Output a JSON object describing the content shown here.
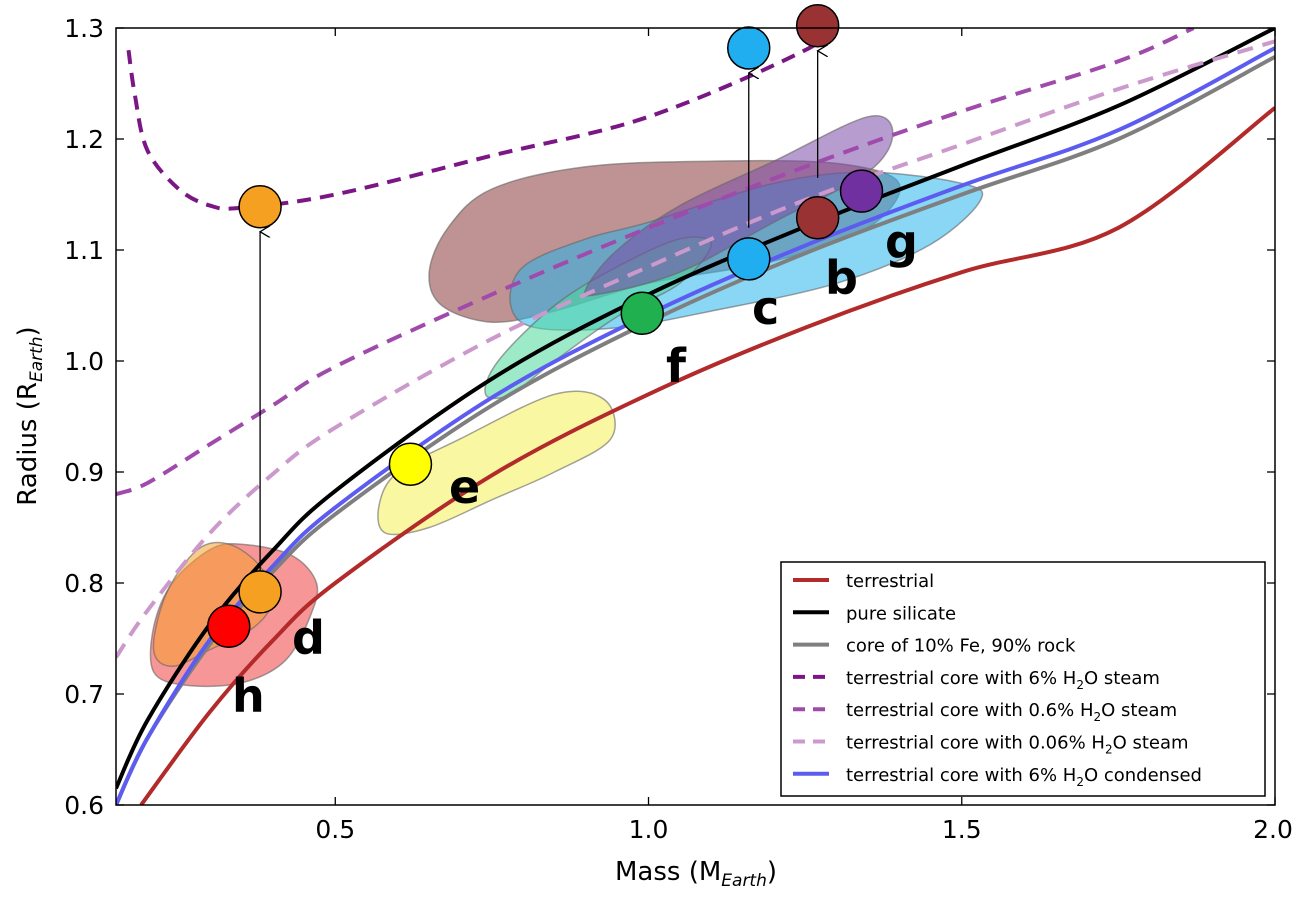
{
  "chart_data": {
    "type": "line",
    "xlabel": "Mass (M",
    "xlabel_sub": "Earth",
    "xlabel_end": ")",
    "ylabel": "Radius (R",
    "ylabel_sub": "Earth",
    "ylabel_end": ")",
    "xlim": [
      0.15,
      2.0
    ],
    "ylim": [
      0.6,
      1.3
    ],
    "xticks": [
      0.5,
      1.0,
      1.5,
      2.0
    ],
    "xtick_labels": [
      "0.5",
      "1.0",
      "1.5",
      "2.0"
    ],
    "yticks": [
      0.6,
      0.7,
      0.8,
      0.9,
      1.0,
      1.1,
      1.2,
      1.3
    ],
    "ytick_labels": [
      "0.6",
      "0.7",
      "0.8",
      "0.9",
      "1.0",
      "1.1",
      "1.2",
      "1.3"
    ],
    "grid": false,
    "legend_position": "bottom-right",
    "series": [
      {
        "name": "terrestrial",
        "color": "#b22a2a",
        "style": "solid",
        "points": [
          [
            0.19,
            0.6
          ],
          [
            0.3,
            0.684
          ],
          [
            0.4,
            0.748
          ],
          [
            0.5,
            0.8
          ],
          [
            0.75,
            0.897
          ],
          [
            1.0,
            0.97
          ],
          [
            1.25,
            1.03
          ],
          [
            1.5,
            1.08
          ],
          [
            1.75,
            1.12
          ],
          [
            2.0,
            1.228
          ]
        ]
      },
      {
        "name": "pure silicate",
        "color": "#000000",
        "style": "solid",
        "points": [
          [
            0.15,
            0.615
          ],
          [
            0.2,
            0.676
          ],
          [
            0.3,
            0.763
          ],
          [
            0.4,
            0.829
          ],
          [
            0.5,
            0.883
          ],
          [
            0.75,
            0.984
          ],
          [
            1.0,
            1.06
          ],
          [
            1.25,
            1.121
          ],
          [
            1.5,
            1.176
          ],
          [
            1.75,
            1.23
          ],
          [
            2.0,
            1.3
          ]
        ]
      },
      {
        "name": "core of 10% Fe, 90% rock",
        "color": "#7f7f7f",
        "style": "solid",
        "points": [
          [
            0.15,
            0.6
          ],
          [
            0.2,
            0.66
          ],
          [
            0.3,
            0.745
          ],
          [
            0.4,
            0.81
          ],
          [
            0.5,
            0.862
          ],
          [
            0.75,
            0.96
          ],
          [
            1.0,
            1.035
          ],
          [
            1.25,
            1.097
          ],
          [
            1.5,
            1.15
          ],
          [
            1.75,
            1.2
          ],
          [
            2.0,
            1.274
          ]
        ]
      },
      {
        "name": "terrestrial core with 6% H₂O steam",
        "label_main": "terrestrial core with 6% H",
        "label_sub": "2",
        "label_end": "O steam",
        "color": "#7a1785",
        "style": "dashed",
        "points": [
          [
            0.17,
            1.28
          ],
          [
            0.18,
            1.24
          ],
          [
            0.2,
            1.19
          ],
          [
            0.25,
            1.155
          ],
          [
            0.3,
            1.14
          ],
          [
            0.35,
            1.138
          ],
          [
            0.5,
            1.15
          ],
          [
            0.75,
            1.185
          ],
          [
            1.0,
            1.22
          ],
          [
            1.25,
            1.28
          ],
          [
            1.28,
            1.3
          ]
        ]
      },
      {
        "name": "terrestrial core with 0.6% H₂O steam",
        "label_main": "terrestrial core with 0.6% H",
        "label_sub": "2",
        "label_end": "O steam",
        "color": "#a04aab",
        "style": "dashed",
        "points": [
          [
            0.15,
            0.88
          ],
          [
            0.2,
            0.89
          ],
          [
            0.3,
            0.925
          ],
          [
            0.4,
            0.96
          ],
          [
            0.5,
            0.995
          ],
          [
            0.75,
            1.06
          ],
          [
            1.0,
            1.12
          ],
          [
            1.25,
            1.175
          ],
          [
            1.5,
            1.225
          ],
          [
            1.75,
            1.27
          ],
          [
            1.87,
            1.3
          ]
        ]
      },
      {
        "name": "terrestrial core with 0.06% H₂O steam",
        "label_main": "terrestrial core with 0.06% H",
        "label_sub": "2",
        "label_end": "O steam",
        "color": "#cc99cc",
        "style": "dashed",
        "points": [
          [
            0.15,
            0.733
          ],
          [
            0.2,
            0.775
          ],
          [
            0.3,
            0.845
          ],
          [
            0.4,
            0.898
          ],
          [
            0.5,
            0.94
          ],
          [
            0.75,
            1.02
          ],
          [
            1.0,
            1.085
          ],
          [
            1.25,
            1.145
          ],
          [
            1.5,
            1.195
          ],
          [
            1.75,
            1.245
          ],
          [
            2.0,
            1.288
          ]
        ]
      },
      {
        "name": "terrestrial core with 6% H₂O condensed",
        "label_main": "terrestrial core with 6% H",
        "label_sub": "2",
        "label_end": "O condensed",
        "color": "#5c5cf0",
        "style": "solid",
        "points": [
          [
            0.15,
            0.6
          ],
          [
            0.2,
            0.66
          ],
          [
            0.3,
            0.749
          ],
          [
            0.4,
            0.815
          ],
          [
            0.5,
            0.868
          ],
          [
            0.75,
            0.967
          ],
          [
            1.0,
            1.042
          ],
          [
            1.25,
            1.104
          ],
          [
            1.5,
            1.158
          ],
          [
            1.75,
            1.208
          ],
          [
            2.0,
            1.282
          ]
        ]
      }
    ],
    "regions": [
      {
        "name": "b",
        "color": "#8b3a3a",
        "points": [
          [
            0.65,
            1.08
          ],
          [
            0.68,
            1.12
          ],
          [
            0.75,
            1.155
          ],
          [
            0.9,
            1.175
          ],
          [
            1.1,
            1.18
          ],
          [
            1.3,
            1.178
          ],
          [
            1.4,
            1.16
          ],
          [
            1.35,
            1.12
          ],
          [
            1.2,
            1.09
          ],
          [
            1.0,
            1.07
          ],
          [
            0.85,
            1.045
          ],
          [
            0.75,
            1.035
          ],
          [
            0.67,
            1.05
          ]
        ]
      },
      {
        "name": "c",
        "color": "#28b4ec",
        "points": [
          [
            0.78,
            1.05
          ],
          [
            0.8,
            1.085
          ],
          [
            0.9,
            1.11
          ],
          [
            1.0,
            1.125
          ],
          [
            1.2,
            1.16
          ],
          [
            1.35,
            1.17
          ],
          [
            1.5,
            1.16
          ],
          [
            1.53,
            1.145
          ],
          [
            1.45,
            1.105
          ],
          [
            1.3,
            1.07
          ],
          [
            1.1,
            1.045
          ],
          [
            0.95,
            1.03
          ],
          [
            0.82,
            1.03
          ]
        ]
      },
      {
        "name": "f",
        "color": "#4dd99a",
        "points": [
          [
            0.74,
            0.97
          ],
          [
            0.76,
            1.0
          ],
          [
            0.85,
            1.05
          ],
          [
            0.95,
            1.085
          ],
          [
            1.05,
            1.11
          ],
          [
            1.1,
            1.105
          ],
          [
            1.05,
            1.07
          ],
          [
            0.95,
            1.04
          ],
          [
            0.85,
            1.0
          ],
          [
            0.78,
            0.97
          ]
        ]
      },
      {
        "name": "g",
        "color": "#7a4aa8",
        "points": [
          [
            0.9,
            1.065
          ],
          [
            0.95,
            1.1
          ],
          [
            1.05,
            1.14
          ],
          [
            1.2,
            1.18
          ],
          [
            1.35,
            1.22
          ],
          [
            1.39,
            1.205
          ],
          [
            1.35,
            1.17
          ],
          [
            1.2,
            1.125
          ],
          [
            1.05,
            1.08
          ],
          [
            0.92,
            1.06
          ]
        ]
      },
      {
        "name": "e",
        "color": "#f5f057",
        "points": [
          [
            0.57,
            0.87
          ],
          [
            0.6,
            0.9
          ],
          [
            0.7,
            0.93
          ],
          [
            0.85,
            0.97
          ],
          [
            0.93,
            0.965
          ],
          [
            0.94,
            0.93
          ],
          [
            0.85,
            0.9
          ],
          [
            0.75,
            0.875
          ],
          [
            0.65,
            0.85
          ],
          [
            0.58,
            0.845
          ]
        ]
      },
      {
        "name": "h",
        "color": "#f04040",
        "points": [
          [
            0.21,
            0.72
          ],
          [
            0.21,
            0.76
          ],
          [
            0.24,
            0.8
          ],
          [
            0.3,
            0.83
          ],
          [
            0.35,
            0.835
          ],
          [
            0.43,
            0.825
          ],
          [
            0.47,
            0.8
          ],
          [
            0.46,
            0.77
          ],
          [
            0.42,
            0.73
          ],
          [
            0.35,
            0.71
          ],
          [
            0.26,
            0.708
          ]
        ]
      },
      {
        "name": "d",
        "color": "#f5a030",
        "points": [
          [
            0.21,
            0.74
          ],
          [
            0.23,
            0.79
          ],
          [
            0.28,
            0.83
          ],
          [
            0.33,
            0.835
          ],
          [
            0.38,
            0.815
          ],
          [
            0.4,
            0.785
          ],
          [
            0.37,
            0.76
          ],
          [
            0.3,
            0.74
          ],
          [
            0.24,
            0.725
          ]
        ]
      }
    ],
    "planets": [
      {
        "name": "h",
        "x": 0.33,
        "y": 0.761,
        "color": "#ff0000"
      },
      {
        "name": "d",
        "x": 0.38,
        "y": 0.792,
        "color": "#f5a020"
      },
      {
        "name": "e",
        "x": 0.62,
        "y": 0.907,
        "color": "#ffff00"
      },
      {
        "name": "f",
        "x": 0.99,
        "y": 1.043,
        "color": "#20b050"
      },
      {
        "name": "c",
        "x": 1.16,
        "y": 1.092,
        "color": "#20aef0"
      },
      {
        "name": "b",
        "x": 1.27,
        "y": 1.129,
        "color": "#993333"
      },
      {
        "name": "g",
        "x": 1.34,
        "y": 1.153,
        "color": "#7030a0"
      }
    ],
    "shifted_planets": [
      {
        "name": "d",
        "x": 0.38,
        "y": 1.139,
        "from_y": 0.81,
        "color": "#f5a020"
      },
      {
        "name": "c",
        "x": 1.16,
        "y": 1.282,
        "from_y": 1.12,
        "color": "#20aef0"
      },
      {
        "name": "b",
        "x": 1.27,
        "y": 1.302,
        "from_y": 1.165,
        "color": "#993333"
      }
    ]
  }
}
